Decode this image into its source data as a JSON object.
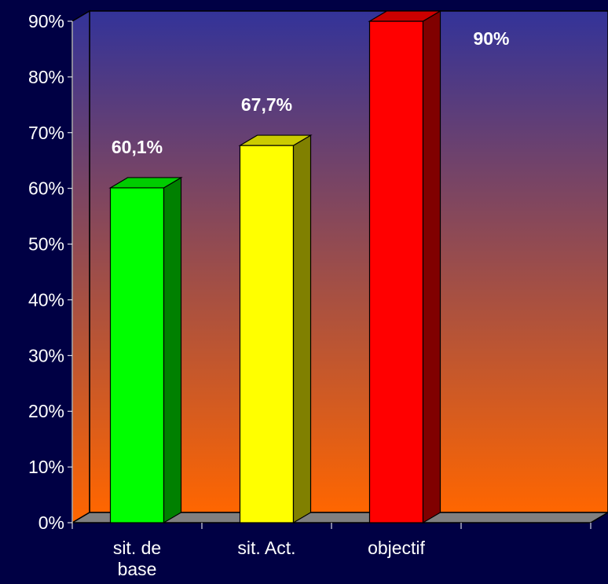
{
  "chart_data": {
    "type": "bar",
    "categories": [
      "sit. de base",
      "sit. Act.",
      "objectif"
    ],
    "category_lines": [
      [
        "sit. de",
        "base"
      ],
      [
        "sit. Act."
      ],
      [
        "objectif"
      ]
    ],
    "values": [
      60.1,
      67.7,
      90
    ],
    "data_labels": [
      "60,1%",
      "67,7%",
      "90%"
    ],
    "ylim": [
      0,
      90
    ],
    "yticks": [
      0,
      10,
      20,
      30,
      40,
      50,
      60,
      70,
      80,
      90
    ],
    "ytick_labels": [
      "0%",
      "10%",
      "20%",
      "30%",
      "40%",
      "50%",
      "60%",
      "70%",
      "80%",
      "90%"
    ],
    "title": "",
    "xlabel": "",
    "ylabel": "",
    "three_d": true,
    "grid": false,
    "legend": "none"
  },
  "colors": {
    "background": "#000044",
    "wall_top": "#333399",
    "wall_bottom": "#ff6600",
    "floor": "#808080",
    "bars": [
      {
        "front": "#00ff00",
        "side": "#008000",
        "top": "#00cc00"
      },
      {
        "front": "#ffff00",
        "side": "#808000",
        "top": "#cccc00"
      },
      {
        "front": "#ff0000",
        "side": "#800000",
        "top": "#cc0000"
      }
    ]
  }
}
